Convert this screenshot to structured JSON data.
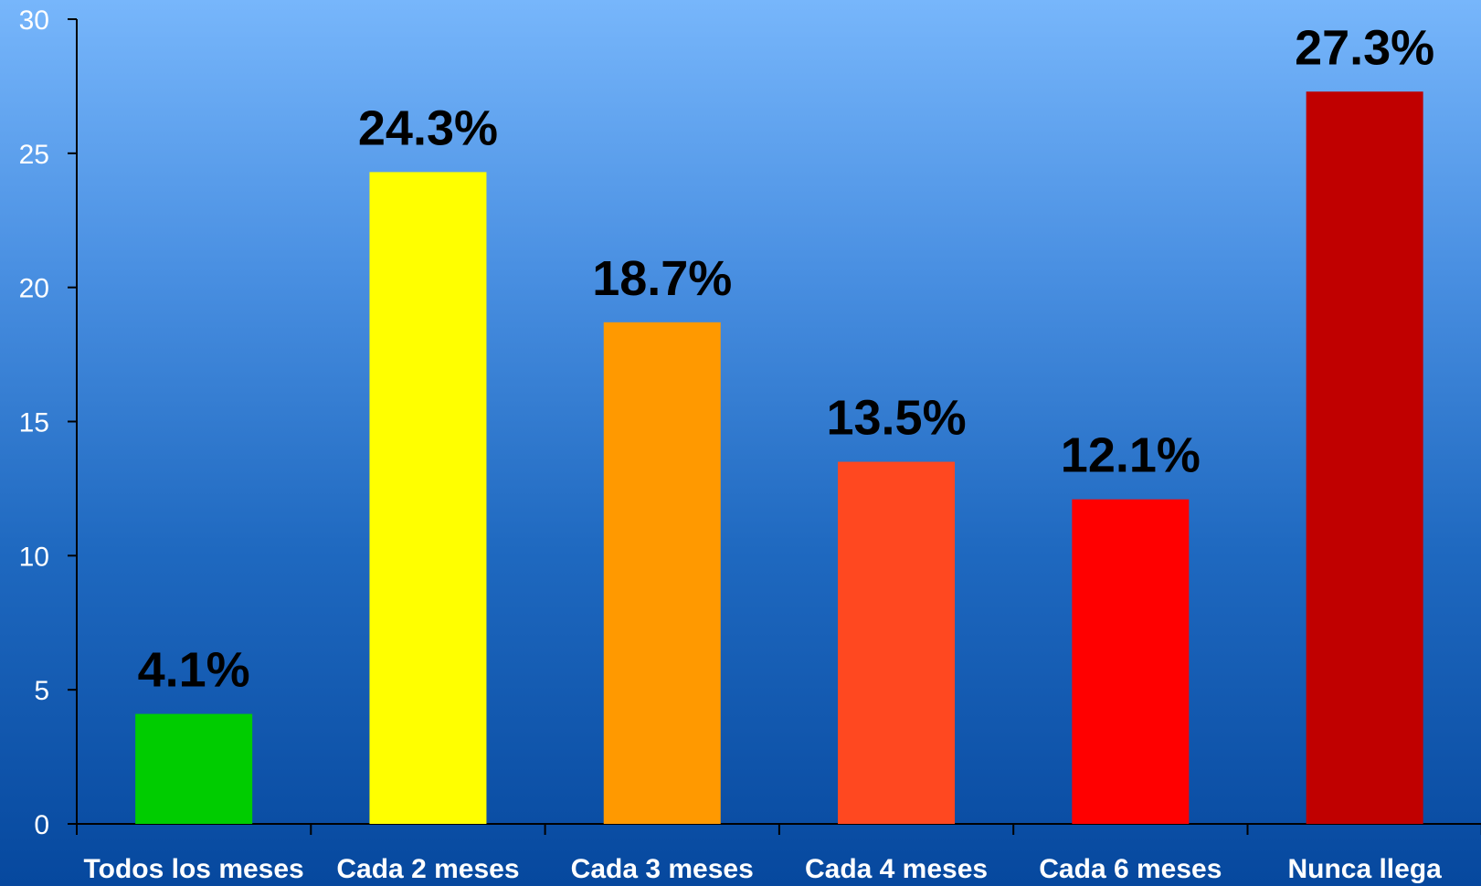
{
  "chart_data": {
    "type": "bar",
    "categories": [
      "Todos los meses",
      "Cada 2 meses",
      "Cada 3 meses",
      "Cada 4 meses",
      "Cada 6 meses",
      "Nunca llega"
    ],
    "values": [
      4.1,
      24.3,
      18.7,
      13.5,
      12.1,
      27.3
    ],
    "data_labels": [
      "4.1%",
      "24.3%",
      "18.7%",
      "13.5%",
      "12.1%",
      "27.3%"
    ],
    "colors": [
      "#00cc00",
      "#ffff00",
      "#ff9900",
      "#ff4820",
      "#ff0000",
      "#c00000"
    ],
    "ylim": [
      0,
      30
    ],
    "yticks": [
      0,
      5,
      10,
      15,
      20,
      25,
      30
    ],
    "title": "",
    "xlabel": "",
    "ylabel": "",
    "grid": false,
    "legend": "none"
  }
}
